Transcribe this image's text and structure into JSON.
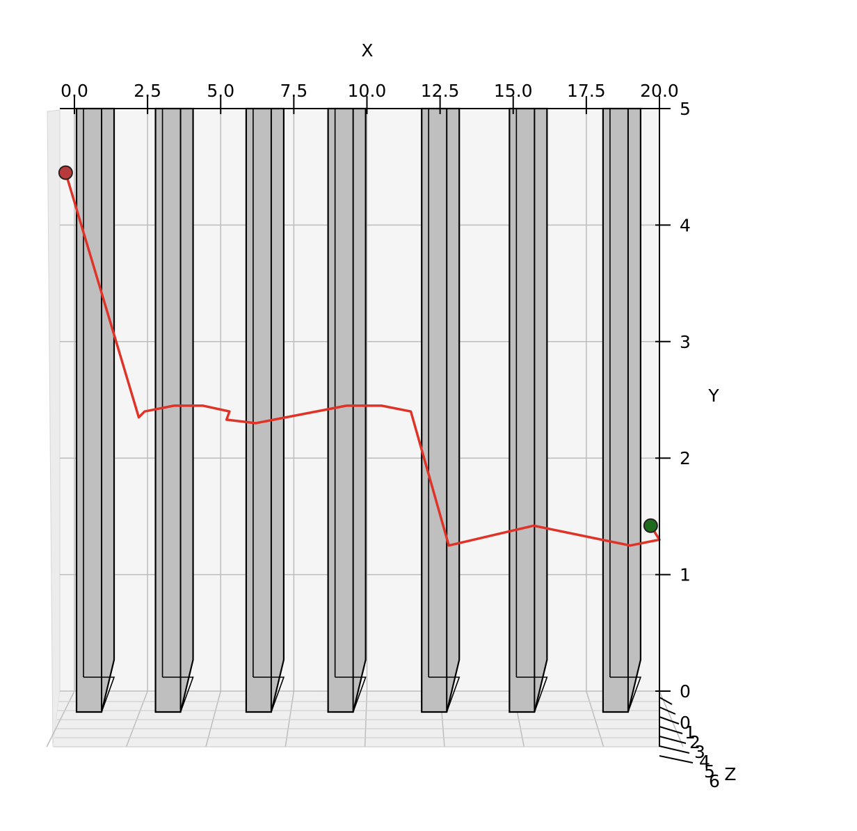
{
  "chart_data": {
    "type": "line",
    "title": "",
    "xlabel": "X",
    "ylabel": "Y",
    "zlabel": "Z",
    "xlim": [
      0,
      20
    ],
    "ylim": [
      0,
      5
    ],
    "zlim": [
      0,
      6
    ],
    "x_ticks": [
      "0.0",
      "2.5",
      "5.0",
      "7.5",
      "10.0",
      "12.5",
      "15.0",
      "17.5",
      "20.0"
    ],
    "y_ticks": [
      "0",
      "1",
      "2",
      "3",
      "4",
      "5"
    ],
    "z_ticks": [
      "0",
      "1",
      "2",
      "3",
      "4",
      "5",
      "6"
    ],
    "grid": true,
    "pane_color": "#f5f5f5",
    "pillar_color": "#bfbfbf",
    "path_color": "#e03328",
    "start_color": "#b83a3a",
    "end_color": "#1e6b1e",
    "pillars": [
      {
        "x": 0.5
      },
      {
        "x": 3.2
      },
      {
        "x": 6.3
      },
      {
        "x": 9.1
      },
      {
        "x": 12.3
      },
      {
        "x": 15.3
      },
      {
        "x": 18.5
      }
    ],
    "path": [
      {
        "x": -0.3,
        "y": 4.45
      },
      {
        "x": 2.2,
        "y": 2.35
      },
      {
        "x": 2.4,
        "y": 2.4
      },
      {
        "x": 3.4,
        "y": 2.45
      },
      {
        "x": 4.4,
        "y": 2.45
      },
      {
        "x": 5.3,
        "y": 2.4
      },
      {
        "x": 5.2,
        "y": 2.33
      },
      {
        "x": 6.2,
        "y": 2.3
      },
      {
        "x": 9.3,
        "y": 2.45
      },
      {
        "x": 10.5,
        "y": 2.45
      },
      {
        "x": 11.5,
        "y": 2.4
      },
      {
        "x": 12.8,
        "y": 1.25
      },
      {
        "x": 15.7,
        "y": 1.42
      },
      {
        "x": 19.0,
        "y": 1.25
      },
      {
        "x": 20.0,
        "y": 1.3
      },
      {
        "x": 19.7,
        "y": 1.42
      }
    ],
    "start": {
      "x": -0.3,
      "y": 4.45
    },
    "end": {
      "x": 19.7,
      "y": 1.42
    }
  }
}
